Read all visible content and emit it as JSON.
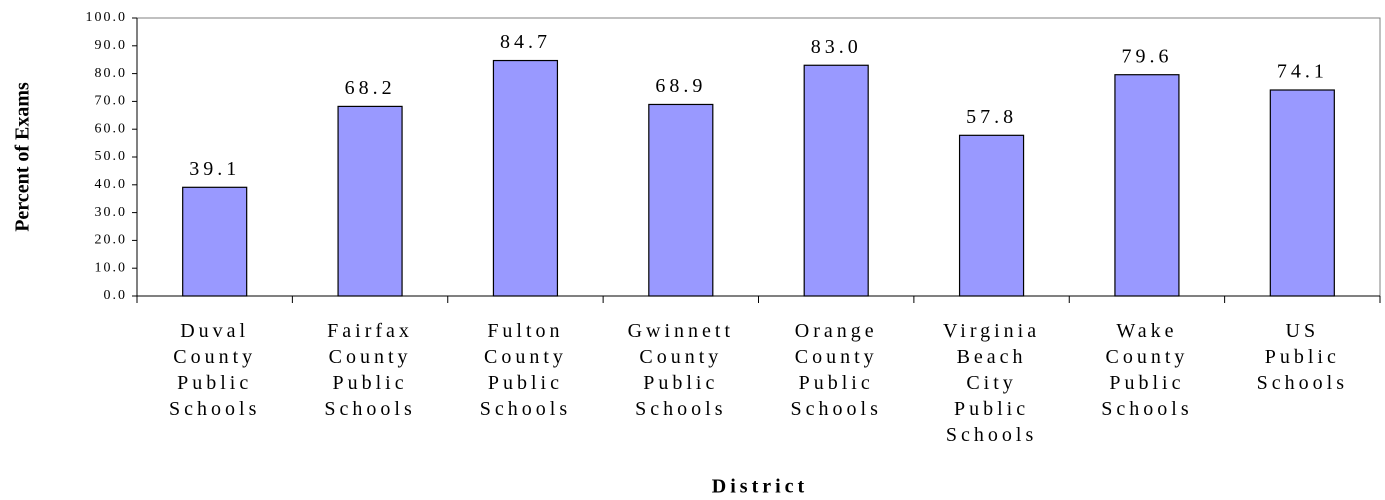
{
  "chart_data": {
    "type": "bar",
    "x_label": "District",
    "y_label": "Percent of Exams",
    "categories": [
      "Duval County Public Schools",
      "Fairfax County Public Schools",
      "Fulton County Public Schools",
      "Gwinnett County Public Schools",
      "Orange County Public Schools",
      "Virginia Beach City Public Schools",
      "Wake County Public Schools",
      "US Public Schools"
    ],
    "values": [
      39.1,
      68.2,
      84.7,
      68.9,
      83,
      57.8,
      79.6,
      74.1
    ],
    "value_labels": [
      "39.1",
      "68.2",
      "84.7",
      "68.9",
      "83.0",
      "57.8",
      "79.6",
      "74.1"
    ],
    "color": "#9999ff",
    "ylim": [
      0,
      100
    ],
    "yticks": [
      {
        "value": 0,
        "label": "0.0"
      },
      {
        "value": 10,
        "label": "10.0"
      },
      {
        "value": 20,
        "label": "20.0"
      },
      {
        "value": 30,
        "label": "30.0"
      },
      {
        "value": 40,
        "label": "40.0"
      },
      {
        "value": 50,
        "label": "50.0"
      },
      {
        "value": 60,
        "label": "60.0"
      },
      {
        "value": 70,
        "label": "70.0"
      },
      {
        "value": 80,
        "label": "80.0"
      },
      {
        "value": 90,
        "label": "90.0"
      },
      {
        "value": 100,
        "label": "100.0"
      }
    ],
    "grid": false
  }
}
